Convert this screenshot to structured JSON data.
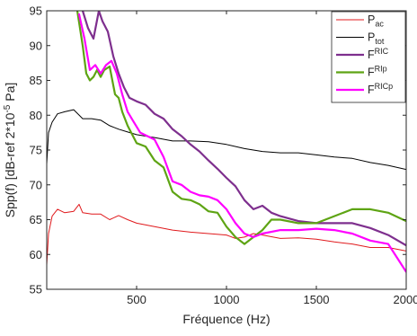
{
  "chart_data": {
    "type": "line",
    "title": "",
    "xlabel": "Fréquence (Hz)",
    "ylabel": "Spp(f) [dB-ref 2*10",
    "ylabel_exp": "-5",
    "ylabel_unit": " Pa]",
    "xlim": [
      0,
      2000
    ],
    "ylim": [
      55,
      95
    ],
    "xticks": [
      500,
      1000,
      1500,
      2000
    ],
    "yticks": [
      55,
      60,
      65,
      70,
      75,
      80,
      85,
      90,
      95
    ],
    "grid": false,
    "legend_position": "top-right",
    "series": [
      {
        "name": "P",
        "sub": "ac",
        "sup": "",
        "color": "#e0191c",
        "width": 1,
        "x": [
          0,
          10,
          30,
          60,
          100,
          150,
          180,
          200,
          250,
          300,
          350,
          400,
          450,
          500,
          600,
          700,
          800,
          900,
          1000,
          1050,
          1100,
          1150,
          1200,
          1300,
          1400,
          1500,
          1600,
          1700,
          1800,
          1900,
          2000
        ],
        "y": [
          58.5,
          63,
          65.5,
          66.5,
          66,
          66.2,
          67.2,
          66,
          65.8,
          65.8,
          65,
          65.6,
          65,
          64.5,
          64,
          63.5,
          63.2,
          63,
          62.8,
          62.3,
          62.5,
          63,
          62.8,
          62.3,
          62.4,
          62.2,
          61.8,
          61.5,
          61,
          61,
          60.5
        ]
      },
      {
        "name": "P",
        "sub": "tot",
        "sup": "",
        "color": "#000000",
        "width": 1,
        "x": [
          0,
          10,
          30,
          60,
          100,
          150,
          200,
          250,
          300,
          350,
          400,
          450,
          500,
          600,
          700,
          800,
          900,
          1000,
          1100,
          1200,
          1300,
          1400,
          1500,
          1600,
          1700,
          1800,
          1900,
          2000
        ],
        "y": [
          73,
          77.5,
          79,
          80.2,
          80.5,
          80.8,
          79.5,
          79.5,
          79.3,
          78.5,
          78,
          77.6,
          77.2,
          76.8,
          76.3,
          76.3,
          76.2,
          75.8,
          75.2,
          74.8,
          74.6,
          74.6,
          74.3,
          74,
          73.8,
          73.2,
          72.8,
          72.2
        ]
      },
      {
        "name": "F",
        "sub": "",
        "sup": "RIC",
        "color": "#7e2f8e",
        "width": 2.2,
        "x": [
          200,
          230,
          260,
          290,
          310,
          340,
          370,
          400,
          430,
          460,
          500,
          550,
          600,
          650,
          700,
          750,
          800,
          850,
          900,
          950,
          1000,
          1050,
          1100,
          1150,
          1200,
          1250,
          1300,
          1400,
          1500,
          1600,
          1700,
          1800,
          1900,
          2000
        ],
        "y": [
          95,
          92.5,
          91,
          95,
          93.5,
          92,
          88.5,
          86,
          84,
          82.5,
          82,
          81.5,
          80.2,
          79.5,
          78,
          77,
          75.8,
          74.8,
          73.5,
          72.3,
          71,
          69.8,
          67.8,
          66.5,
          67,
          66,
          65.5,
          64.8,
          64.5,
          64.5,
          64.5,
          63.8,
          62.8,
          61.3
        ]
      },
      {
        "name": "F",
        "sub": "",
        "sup": "RIp",
        "color": "#5ea414",
        "width": 2.2,
        "x": [
          170,
          200,
          220,
          240,
          260,
          280,
          300,
          320,
          350,
          380,
          400,
          420,
          450,
          480,
          500,
          550,
          600,
          650,
          700,
          750,
          800,
          850,
          900,
          950,
          1000,
          1050,
          1100,
          1150,
          1200,
          1250,
          1300,
          1400,
          1500,
          1600,
          1700,
          1800,
          1900,
          2000
        ],
        "y": [
          95,
          90,
          86,
          85,
          85.5,
          86.5,
          85.5,
          86.5,
          87,
          83,
          82.5,
          80.5,
          78.5,
          77,
          76,
          75.5,
          73.5,
          72.5,
          69,
          68,
          67.8,
          67.2,
          66.2,
          66,
          64,
          62.5,
          61.5,
          62.5,
          63.5,
          65,
          65,
          64.5,
          64.5,
          65.5,
          66.5,
          66.5,
          66,
          64.8
        ]
      },
      {
        "name": "F",
        "sub": "",
        "sup": "RICp",
        "color": "#ff00ff",
        "width": 2.2,
        "x": [
          180,
          210,
          240,
          270,
          300,
          330,
          360,
          390,
          420,
          450,
          480,
          520,
          560,
          600,
          650,
          700,
          750,
          800,
          850,
          900,
          950,
          1000,
          1050,
          1100,
          1150,
          1200,
          1300,
          1400,
          1500,
          1600,
          1700,
          1800,
          1900,
          2000
        ],
        "y": [
          94.5,
          91,
          86.5,
          87.2,
          86,
          87.2,
          87.8,
          86,
          83,
          80.5,
          79.2,
          77.5,
          77,
          76.5,
          74,
          70.5,
          70,
          69,
          68.5,
          68.3,
          67.8,
          66.5,
          64.5,
          63,
          62.5,
          63,
          63.5,
          63.5,
          63.7,
          63.5,
          63,
          62,
          61.5,
          57.5
        ]
      }
    ]
  }
}
